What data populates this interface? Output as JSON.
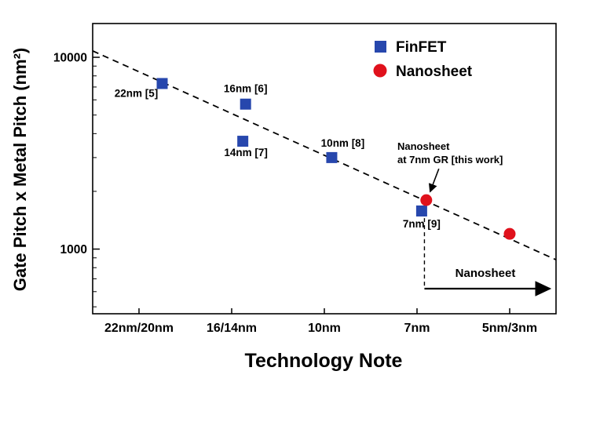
{
  "chart_data": {
    "type": "scatter",
    "title": "",
    "xlabel": "Technology Note",
    "ylabel": "Gate Pitch x Metal Pitch (nm²)",
    "y_scale": "log",
    "ylim": [
      460,
      15000
    ],
    "y_major_ticks": [
      1000,
      10000
    ],
    "grid": false,
    "legend_position": "top-right-inside",
    "categories": [
      "22nm/20nm",
      "16/14nm",
      "10nm",
      "7nm",
      "5nm/3nm"
    ],
    "series": [
      {
        "name": "FinFET",
        "marker": "square",
        "color": "#2747ad",
        "points": [
          {
            "category": "22nm/20nm",
            "xi": 0.25,
            "y": 7300,
            "label": "22nm [5]",
            "label_dx": -33,
            "label_dy": 17
          },
          {
            "category": "16/14nm",
            "xi": 1.15,
            "y": 5700,
            "label": "16nm [6]",
            "label_dx": 0,
            "label_dy": -15
          },
          {
            "category": "16/14nm",
            "xi": 1.12,
            "y": 3650,
            "label": "14nm [7]",
            "label_dx": 4,
            "label_dy": 19
          },
          {
            "category": "10nm",
            "xi": 2.08,
            "y": 3000,
            "label": "10nm [8]",
            "label_dx": 14,
            "label_dy": -14
          },
          {
            "category": "7nm",
            "xi": 3.05,
            "y": 1580,
            "label": "7nm [9]",
            "label_dx": 0,
            "label_dy": 21
          }
        ]
      },
      {
        "name": "Nanosheet",
        "marker": "circle",
        "color": "#e0111c",
        "points": [
          {
            "category": "7nm",
            "xi": 3.1,
            "y": 1800,
            "label": "",
            "label_dx": 0,
            "label_dy": 0
          },
          {
            "category": "5nm/3nm",
            "xi": 4.0,
            "y": 1200,
            "label": "",
            "label_dx": 0,
            "label_dy": 0
          }
        ]
      }
    ],
    "trend_line": {
      "style": "dashed",
      "color": "#000000",
      "y_at_left": 10800,
      "y_at_right": 880
    },
    "annotations": {
      "callout": {
        "line1": "Nanosheet",
        "line2": "at 7nm GR [this work]",
        "target_xi": 3.1,
        "target_y": 1800
      },
      "bottom_arrow": {
        "label": "Nanosheet",
        "xi": 3.08,
        "drop_top_y": 1450
      }
    },
    "point_label_color": "#1d3377"
  }
}
